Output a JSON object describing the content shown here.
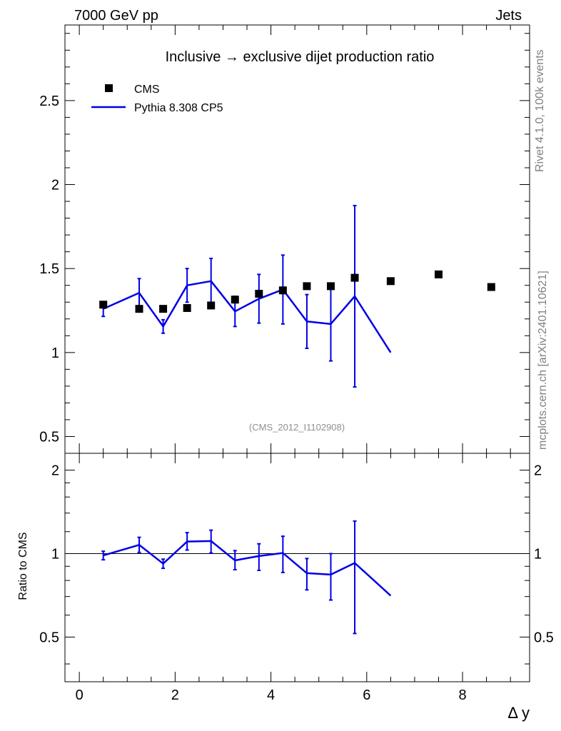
{
  "header": {
    "left_label": "7000 GeV pp",
    "right_label": "Jets",
    "side_label_top": "Rivet 4.1.0,  100k events",
    "side_label_bottom": "mcplots.cern.ch [arXiv:2401.10621]"
  },
  "colors": {
    "data": "#000000",
    "mc": "#0000e6",
    "axis": "#000000",
    "watermark": "#909090",
    "side_text": "#808080"
  },
  "chart_data": [
    {
      "type": "scatter",
      "title": "Inclusive → exclusive dijet production ratio",
      "watermark": "(CMS_2012_I1102908)",
      "xlabel": "",
      "ylabel": "",
      "xlim": [
        -0.3,
        9.4
      ],
      "ylim": [
        0.4,
        2.95
      ],
      "yticks": [
        0.5,
        1,
        1.5,
        2,
        2.5
      ],
      "ytick_labels": [
        "0.5",
        "1",
        "1.5",
        "2",
        "2.5"
      ],
      "legend_position": "top-left",
      "series": [
        {
          "name": "CMS",
          "style": "markers",
          "x": [
            0.5,
            1.25,
            1.75,
            2.25,
            2.75,
            3.25,
            3.75,
            4.25,
            4.75,
            5.25,
            5.75,
            6.5,
            7.5,
            8.6
          ],
          "y": [
            1.285,
            1.26,
            1.26,
            1.265,
            1.28,
            1.315,
            1.35,
            1.37,
            1.395,
            1.395,
            1.445,
            1.425,
            1.465,
            1.39
          ]
        },
        {
          "name": "Pythia 8.308 CP5",
          "style": "line",
          "x": [
            0.5,
            1.25,
            1.75,
            2.25,
            2.75,
            3.25,
            3.75,
            4.25,
            4.75,
            5.25,
            5.75,
            6.5
          ],
          "y": [
            1.26,
            1.355,
            1.155,
            1.4,
            1.425,
            1.245,
            1.32,
            1.375,
            1.185,
            1.17,
            1.335,
            1.0
          ],
          "yerr_low": [
            1.215,
            1.27,
            1.115,
            1.3,
            1.29,
            1.155,
            1.175,
            1.17,
            1.025,
            0.95,
            0.795,
            null
          ],
          "yerr_high": [
            1.3,
            1.44,
            1.195,
            1.5,
            1.56,
            1.335,
            1.465,
            1.58,
            1.345,
            1.39,
            1.875,
            null
          ]
        }
      ]
    },
    {
      "type": "line",
      "title": "",
      "xlabel": "Δ y",
      "ylabel": "Ratio to CMS",
      "xlim": [
        -0.3,
        9.4
      ],
      "ylim": [
        0.345,
        2.3
      ],
      "yscale": "log",
      "xticks": [
        0,
        2,
        4,
        6,
        8
      ],
      "xtick_labels": [
        "0",
        "2",
        "4",
        "6",
        "8"
      ],
      "yticks": [
        0.5,
        1,
        2
      ],
      "ytick_labels": [
        "0.5",
        "1",
        "2"
      ],
      "reference_line": 1,
      "series": [
        {
          "name": "Pythia 8.308 CP5",
          "style": "line",
          "x": [
            0.5,
            1.25,
            1.75,
            2.25,
            2.75,
            3.25,
            3.75,
            4.25,
            4.75,
            5.25,
            5.75,
            6.5
          ],
          "y": [
            0.985,
            1.075,
            0.92,
            1.105,
            1.11,
            0.945,
            0.98,
            1.005,
            0.85,
            0.84,
            0.925,
            0.705
          ],
          "yerr_low": [
            0.95,
            1.01,
            0.885,
            1.03,
            1.005,
            0.875,
            0.87,
            0.855,
            0.74,
            0.68,
            0.515,
            null
          ],
          "yerr_high": [
            1.02,
            1.145,
            0.955,
            1.19,
            1.215,
            1.025,
            1.085,
            1.155,
            0.96,
            1.0,
            1.31,
            null
          ]
        }
      ]
    }
  ]
}
